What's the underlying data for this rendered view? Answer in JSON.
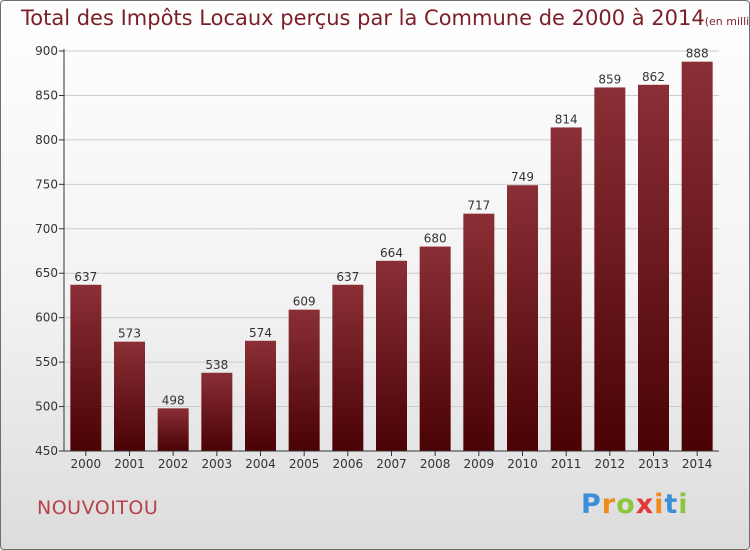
{
  "header": {
    "title": "Total des Impôts Locaux perçus par la Commune de 2000 à 2014",
    "subtitle": "(en milliers d'€)"
  },
  "footer": {
    "commune": "NOUVOITOU",
    "brand": [
      "P",
      "r",
      "o",
      "x",
      "i",
      "t",
      "i"
    ],
    "brand_colors": [
      "#3a8fd8",
      "#f08a1c",
      "#8cc63f",
      "#e23a3a",
      "#f08a1c",
      "#3a8fd8",
      "#8cc63f"
    ]
  },
  "chart_data": {
    "type": "bar",
    "title": "Total des Impôts Locaux perçus par la Commune de 2000 à 2014",
    "xlabel": "",
    "ylabel": "",
    "categories": [
      "2000",
      "2001",
      "2002",
      "2003",
      "2004",
      "2005",
      "2006",
      "2007",
      "2008",
      "2009",
      "2010",
      "2011",
      "2012",
      "2013",
      "2014"
    ],
    "values": [
      637,
      573,
      498,
      538,
      574,
      609,
      637,
      664,
      680,
      717,
      749,
      814,
      859,
      862,
      888
    ],
    "ylim": [
      450,
      900
    ],
    "yticks": [
      450,
      500,
      550,
      600,
      650,
      700,
      750,
      800,
      850,
      900
    ],
    "grid": true,
    "colors": {
      "bar_top": "#8a2f36",
      "bar_bottom": "#4a0205",
      "axis": "#333333",
      "grid": "#cccccc"
    }
  }
}
